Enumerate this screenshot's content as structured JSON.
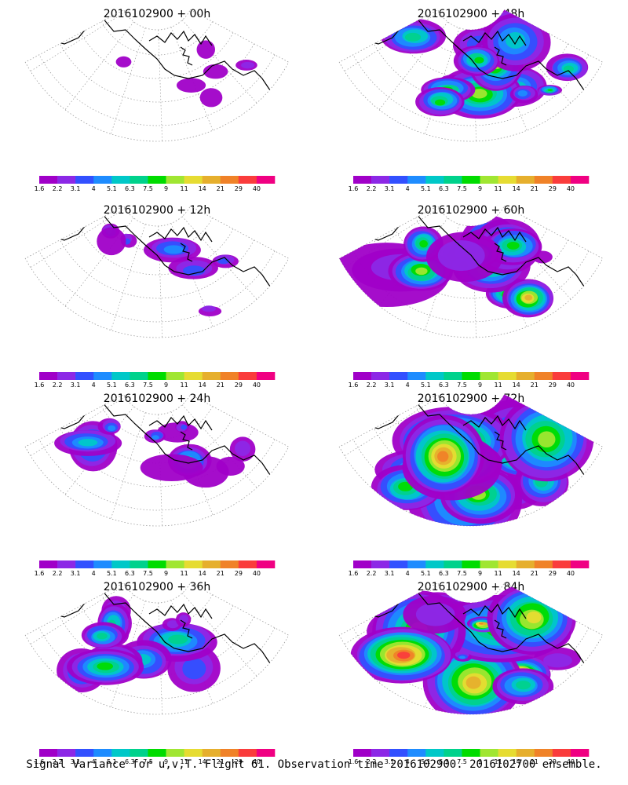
{
  "caption": "Signal Variance for u,v,T. Flight 61. Observation time 2016102900. 2016102700 ensemble.",
  "colorbar": {
    "labels": [
      "1.6",
      "2.2",
      "3.1",
      "4",
      "5.1",
      "6.3",
      "7.5",
      "9",
      "11",
      "14",
      "21",
      "29",
      "40"
    ],
    "colors": [
      "#a000c8",
      "#8c28e6",
      "#3250ff",
      "#1e8cff",
      "#00c8c8",
      "#00d28c",
      "#00dc00",
      "#a0e632",
      "#e6dc32",
      "#e6af2d",
      "#f08228",
      "#fa3c3c",
      "#f00082"
    ]
  },
  "panels": [
    {
      "title": "2016102900 + 00h",
      "lead_hours": 0
    },
    {
      "title": "2016102900 + 48h",
      "lead_hours": 48
    },
    {
      "title": "2016102900 + 12h",
      "lead_hours": 12
    },
    {
      "title": "2016102900 + 60h",
      "lead_hours": 60
    },
    {
      "title": "2016102900 + 24h",
      "lead_hours": 24
    },
    {
      "title": "2016102900 + 72h",
      "lead_hours": 72
    },
    {
      "title": "2016102900 + 36h",
      "lead_hours": 36
    },
    {
      "title": "2016102900 + 84h",
      "lead_hours": 84
    }
  ]
}
